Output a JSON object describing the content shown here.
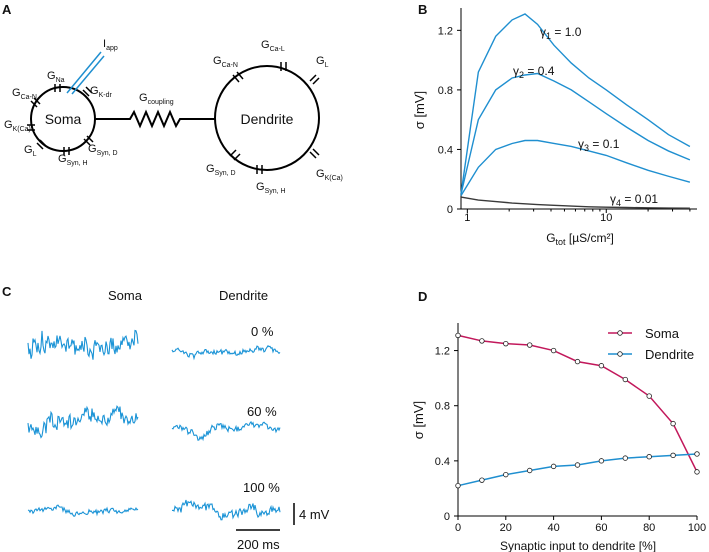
{
  "panels": {
    "a": "A",
    "b": "B",
    "c": "C",
    "d": "D"
  },
  "panel_a": {
    "soma_label": "Soma",
    "dendrite_label": "Dendrite",
    "iapp": {
      "main": "I",
      "sub": "app"
    },
    "coupling": {
      "main": "G",
      "sub": "coupling"
    },
    "soma_channels": [
      {
        "main": "G",
        "sub": "Na"
      },
      {
        "main": "G",
        "sub": "K-dr"
      },
      {
        "main": "G",
        "sub": "Ca-N"
      },
      {
        "main": "G",
        "sub": "K(Ca)"
      },
      {
        "main": "G",
        "sub": "L"
      },
      {
        "main": "G",
        "sub": "Syn, H"
      },
      {
        "main": "G",
        "sub": "Syn, D"
      }
    ],
    "dendrite_channels": [
      {
        "main": "G",
        "sub": "Ca-L"
      },
      {
        "main": "G",
        "sub": "Ca-N"
      },
      {
        "main": "G",
        "sub": "L"
      },
      {
        "main": "G",
        "sub": "Syn, D"
      },
      {
        "main": "G",
        "sub": "Syn, H"
      },
      {
        "main": "G",
        "sub": "K(Ca)"
      }
    ]
  },
  "panel_c": {
    "soma_title": "Soma",
    "dendrite_title": "Dendrite",
    "percent_labels": [
      "0 %",
      "60 %",
      "100 %"
    ],
    "scale_v": "4 mV",
    "scale_t": "200 ms"
  },
  "chart_data": [
    {
      "type": "line",
      "panel": "B",
      "xlabel": {
        "main": "G",
        "sub": "tot",
        "unit": " [µS/cm²]"
      },
      "ylabel": "σ [mV]",
      "xscale": "log",
      "xlim": [
        0.9,
        45
      ],
      "ylim": [
        0,
        1.35
      ],
      "xticks": [
        "1",
        "10"
      ],
      "xtick_values": [
        1,
        10
      ],
      "yticks": [
        "0",
        "0.4",
        "0.8",
        "1.2"
      ],
      "ytick_values": [
        0,
        0.4,
        0.8,
        1.2
      ],
      "x": [
        0.9,
        1.2,
        1.6,
        2.1,
        2.6,
        3.2,
        4.2,
        5.6,
        7.5,
        10,
        14,
        20,
        28,
        40
      ],
      "series": [
        {
          "name": "γ1 = 1.0",
          "label_main": "γ",
          "label_sub": "1",
          "label_tail": " = 1.0",
          "values": [
            0.1,
            0.92,
            1.16,
            1.27,
            1.31,
            1.24,
            1.1,
            0.98,
            0.88,
            0.8,
            0.7,
            0.6,
            0.5,
            0.42
          ]
        },
        {
          "name": "γ2 = 0.4",
          "label_main": "γ",
          "label_sub": "2",
          "label_tail": " = 0.4",
          "values": [
            0.1,
            0.6,
            0.8,
            0.88,
            0.9,
            0.91,
            0.86,
            0.8,
            0.72,
            0.64,
            0.55,
            0.46,
            0.39,
            0.33
          ]
        },
        {
          "name": "γ3 = 0.1",
          "label_main": "γ",
          "label_sub": "3",
          "label_tail": " = 0.1",
          "values": [
            0.09,
            0.28,
            0.4,
            0.44,
            0.46,
            0.46,
            0.44,
            0.42,
            0.39,
            0.36,
            0.31,
            0.26,
            0.22,
            0.18
          ]
        },
        {
          "name": "γ4 = 0.01",
          "label_main": "γ",
          "label_sub": "4",
          "label_tail": " = 0.01",
          "values": [
            0.08,
            0.06,
            0.05,
            0.04,
            0.035,
            0.03,
            0.025,
            0.02,
            0.015,
            0.012,
            0.01,
            0.008,
            0.006,
            0.005
          ]
        }
      ]
    },
    {
      "type": "line",
      "panel": "D",
      "xlabel": "Synaptic input to dendrite [%]",
      "ylabel": "σ [mV]",
      "xlim": [
        0,
        100
      ],
      "ylim": [
        0,
        1.4
      ],
      "xticks": [
        "0",
        "20",
        "40",
        "60",
        "80",
        "100"
      ],
      "xtick_values": [
        0,
        20,
        40,
        60,
        80,
        100
      ],
      "yticks": [
        "0",
        "0.4",
        "0.8",
        "1.2"
      ],
      "ytick_values": [
        0,
        0.4,
        0.8,
        1.2
      ],
      "x": [
        0,
        10,
        20,
        30,
        40,
        50,
        60,
        70,
        80,
        90,
        100
      ],
      "series": [
        {
          "name": "Soma",
          "color": "#c2185b",
          "values": [
            1.31,
            1.27,
            1.25,
            1.24,
            1.2,
            1.12,
            1.09,
            0.99,
            0.87,
            0.67,
            0.32
          ]
        },
        {
          "name": "Dendrite",
          "color": "#1f8fd0",
          "values": [
            0.22,
            0.26,
            0.3,
            0.33,
            0.36,
            0.37,
            0.4,
            0.42,
            0.43,
            0.44,
            0.45
          ]
        }
      ],
      "legend": "top-right"
    }
  ]
}
